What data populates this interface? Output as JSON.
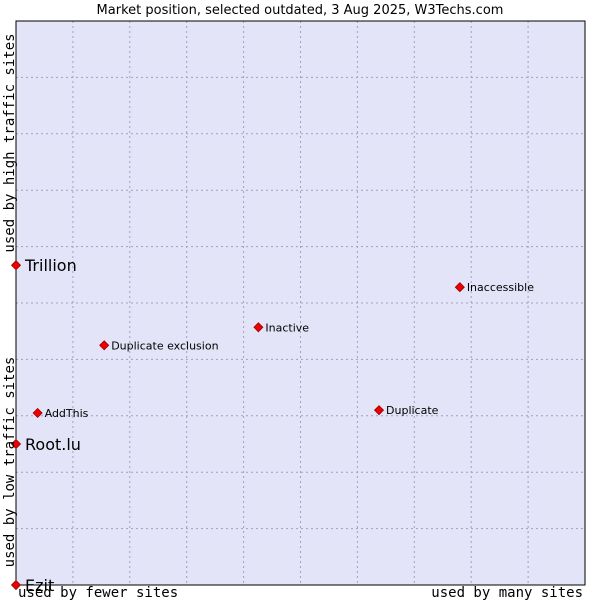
{
  "chart_data": {
    "type": "scatter",
    "title": "Market position, selected outdated, 3 Aug 2025, W3Techs.com",
    "xlabel_left": "used by fewer sites",
    "xlabel_right": "used by many sites",
    "ylabel_top": "used by high traffic sites",
    "ylabel_bottom": "used by low traffic sites",
    "xlim": [
      0,
      10
    ],
    "ylim": [
      0,
      10
    ],
    "grid": true,
    "colors": {
      "plot_bg": "#e4e4f8",
      "grid": "#a0a0c0",
      "border": "#000000",
      "marker": "#ee0000",
      "marker_edge": "#990000"
    },
    "points": [
      {
        "name": "Trillion",
        "x": 0.0,
        "y": 5.67,
        "label_size": "large"
      },
      {
        "name": "Root.lu",
        "x": 0.0,
        "y": 2.5,
        "label_size": "large"
      },
      {
        "name": "Ezit",
        "x": 0.0,
        "y": 0.0,
        "label_size": "large"
      },
      {
        "name": "AddThis",
        "x": 0.38,
        "y": 3.05,
        "label_size": "small"
      },
      {
        "name": "Duplicate exclusion",
        "x": 1.55,
        "y": 4.25,
        "label_size": "small"
      },
      {
        "name": "Inactive",
        "x": 4.26,
        "y": 4.57,
        "label_size": "small"
      },
      {
        "name": "Duplicate",
        "x": 6.38,
        "y": 3.1,
        "label_size": "small"
      },
      {
        "name": "Inaccessible",
        "x": 7.8,
        "y": 5.28,
        "label_size": "small"
      }
    ]
  }
}
